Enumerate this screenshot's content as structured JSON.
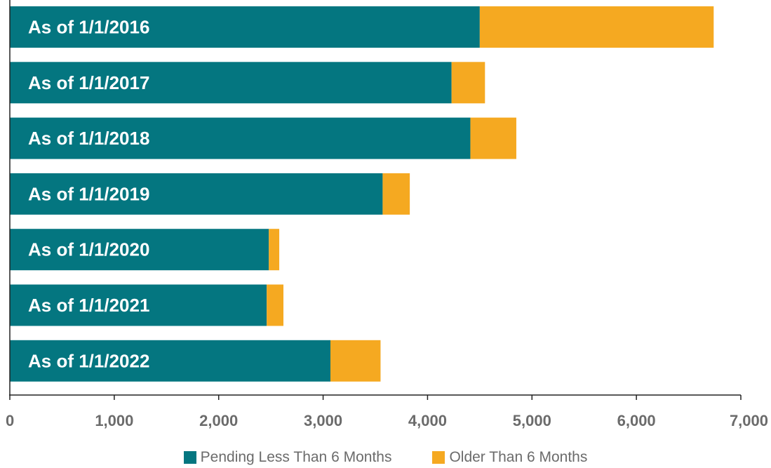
{
  "chart_data": {
    "type": "bar",
    "orientation": "horizontal",
    "stacked": true,
    "categories": [
      "As of 1/1/2016",
      "As of 1/1/2017",
      "As of 1/1/2018",
      "As of 1/1/2019",
      "As of 1/1/2020",
      "As of 1/1/2021",
      "As of 1/1/2022"
    ],
    "series": [
      {
        "name": "Pending Less Than 6 Months",
        "color": "#047680",
        "values": [
          4500,
          4230,
          4410,
          3570,
          2480,
          2460,
          3070
        ]
      },
      {
        "name": "Older Than 6 Months",
        "color": "#F5A921",
        "values": [
          2240,
          320,
          440,
          260,
          100,
          160,
          480
        ]
      }
    ],
    "xlim": [
      0,
      7000
    ],
    "xticks": [
      "0",
      "1,000",
      "2,000",
      "3,000",
      "4,000",
      "5,000",
      "6,000",
      "7,000"
    ],
    "xtick_values": [
      0,
      1000,
      2000,
      3000,
      4000,
      5000,
      6000,
      7000
    ],
    "grid": false,
    "legend_position": "bottom"
  }
}
